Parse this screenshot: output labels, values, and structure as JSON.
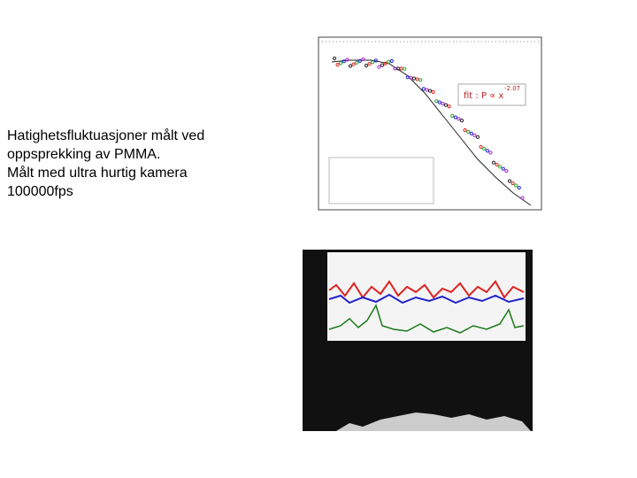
{
  "caption": {
    "lines": [
      "Hatighetsfluktuasjoner  målt  ved",
      "oppsprekking av PMMA.",
      "Målt med ultra hurtig kamera",
      "100000fps"
    ]
  },
  "figure": {
    "fit_label": "fit : P ∝ x",
    "fit_exponent": "-2.07"
  }
}
